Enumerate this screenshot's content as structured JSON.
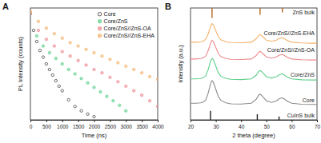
{
  "chart_data": [
    {
      "type": "scatter",
      "title": "A",
      "x_label": "Time (ns)",
      "y_label": "PL Intensity (counts)",
      "xlim": [
        0,
        4000
      ],
      "xticks": [
        0,
        500,
        1000,
        1500,
        2000,
        2500,
        3000,
        3500,
        4000
      ],
      "ylim": [
        1,
        10000
      ],
      "log": "y",
      "tick_labels": "x",
      "legend": "upper right",
      "series": [
        {
          "name": "Core",
          "color": "#333333",
          "marker": "open-circle",
          "x": [
            0,
            100,
            200,
            300,
            400,
            500,
            600,
            700,
            800,
            900,
            1000,
            1200,
            1400,
            1600,
            1800,
            2000
          ],
          "values": [
            6310,
            1585,
            631,
            302,
            174,
            100,
            63,
            40,
            25,
            16,
            11,
            5.2,
            3,
            2.1,
            1.6,
            1.3
          ]
        },
        {
          "name": "Core/ZnS",
          "color": "#5fcf8c",
          "marker": "circle",
          "x": [
            0,
            200,
            400,
            600,
            800,
            1000,
            1200,
            1400,
            1600,
            1800,
            2000,
            2200,
            2400,
            2600,
            2800,
            3000
          ],
          "values": [
            6310,
            1000,
            437,
            251,
            158,
            100,
            63,
            44,
            30,
            21,
            14.5,
            10,
            6.9,
            4.8,
            3.3,
            2.1
          ]
        },
        {
          "name": "Core/ZnS//ZnS-OA",
          "color": "#ee8a8f",
          "marker": "circle",
          "x": [
            0,
            250,
            500,
            750,
            1000,
            1250,
            1500,
            1750,
            2000,
            2250,
            2500,
            2750,
            3000,
            3250,
            3500,
            3750,
            4000
          ],
          "values": [
            6310,
            1585,
            759,
            437,
            275,
            191,
            132,
            91,
            63,
            48,
            33,
            23,
            16,
            11,
            7.6,
            4.8,
            3.0
          ]
        },
        {
          "name": "Core/ZnS//ZnS-EHA",
          "color": "#f5b26b",
          "marker": "circle",
          "x": [
            0,
            250,
            500,
            750,
            1000,
            1250,
            1500,
            1750,
            2000,
            2250,
            2500,
            2750,
            3000,
            3250,
            3500,
            3750,
            4000
          ],
          "values": [
            7586,
            3311,
            1905,
            1202,
            832,
            575,
            437,
            331,
            251,
            191,
            145,
            110,
            83,
            63,
            48,
            35,
            28
          ]
        }
      ]
    },
    {
      "type": "line",
      "title": "B",
      "x_label": "2 theta (degree)",
      "y_label": "Intensity (a.u.)",
      "xlim": [
        20,
        70
      ],
      "xticks": [
        20,
        30,
        40,
        50,
        60,
        70
      ],
      "ylim": [
        0,
        10
      ],
      "tick_labels": "x",
      "x": [
        20,
        22,
        24,
        25,
        26,
        27,
        28,
        28.5,
        29,
        30,
        31,
        32,
        34,
        36,
        40,
        44,
        46,
        47,
        47.5,
        48,
        49,
        50,
        52,
        54,
        55,
        56,
        56.5,
        57,
        58,
        60,
        64,
        68,
        70
      ],
      "series": [
        {
          "name": "Core",
          "color": "#8c8c8c",
          "values": [
            1.48,
            1.48,
            1.52,
            1.59,
            1.78,
            2.4,
            3.28,
            3.5,
            3.39,
            2.73,
            2.07,
            1.74,
            1.52,
            1.43,
            1.41,
            1.48,
            1.85,
            2.22,
            2.29,
            2.22,
            1.96,
            1.7,
            1.56,
            1.7,
            1.87,
            1.96,
            1.94,
            1.87,
            1.7,
            1.48,
            1.39,
            1.37,
            1.37
          ]
        },
        {
          "name": "Core/ZnS",
          "color": "#5fcf8c",
          "values": [
            3.66,
            3.66,
            3.7,
            3.76,
            3.94,
            4.5,
            5.3,
            5.5,
            5.4,
            4.8,
            4.2,
            3.9,
            3.7,
            3.62,
            3.6,
            3.66,
            4.0,
            4.34,
            4.4,
            4.34,
            4.1,
            3.86,
            3.74,
            3.86,
            4.02,
            4.1,
            4.08,
            4.02,
            3.86,
            3.66,
            3.58,
            3.56,
            3.56
          ]
        },
        {
          "name": "Core/ZnS//ZnS-OA",
          "color": "#ee8a8f",
          "values": [
            5.44,
            5.44,
            5.48,
            5.53,
            5.7,
            6.2,
            6.92,
            7.1,
            7.01,
            6.47,
            5.93,
            5.66,
            5.48,
            5.41,
            5.39,
            5.44,
            5.75,
            6.06,
            6.11,
            6.06,
            5.84,
            5.62,
            5.52,
            5.62,
            5.77,
            5.84,
            5.82,
            5.77,
            5.62,
            5.44,
            5.37,
            5.35,
            5.35
          ]
        },
        {
          "name": "Core/ZnS//ZnS-EHA",
          "color": "#f5b26b",
          "values": [
            6.94,
            6.94,
            6.98,
            7.03,
            7.2,
            7.7,
            8.42,
            8.6,
            8.51,
            7.97,
            7.43,
            7.16,
            6.98,
            6.91,
            6.89,
            6.94,
            7.25,
            7.56,
            7.61,
            7.56,
            7.34,
            7.12,
            7.02,
            7.12,
            7.27,
            7.34,
            7.32,
            7.27,
            7.12,
            6.94,
            6.87,
            6.85,
            6.85
          ]
        },
        {
          "name": "ZnS bulk",
          "type": "stick",
          "color": "#b5651d",
          "x": [
            28.5,
            47.5,
            56.3
          ],
          "base": [
            10,
            10,
            10
          ],
          "values": [
            9.1,
            9.4,
            9.6
          ]
        },
        {
          "name": "CuInS bulk",
          "type": "stick",
          "color": "#222222",
          "x": [
            27.9,
            46.4,
            55.0
          ],
          "base": [
            0,
            0,
            0
          ],
          "values": [
            0.8,
            0.5,
            0.3
          ]
        }
      ]
    }
  ]
}
